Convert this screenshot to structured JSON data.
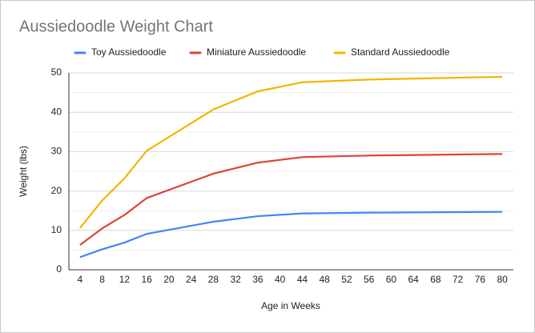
{
  "chart_data": {
    "type": "line",
    "title": "Aussiedoodle Weight Chart",
    "xlabel": "Age in Weeks",
    "ylabel": "Weight (lbs)",
    "x": [
      4,
      8,
      12,
      16,
      28,
      36,
      44,
      56,
      80
    ],
    "series": [
      {
        "name": "Toy Aussiedoodle",
        "color": "#4285f4",
        "values": [
          3.2,
          5.2,
          6.9,
          9.1,
          12.2,
          13.6,
          14.3,
          14.5,
          14.7
        ]
      },
      {
        "name": "Miniature Aussiedoodle",
        "color": "#db4437",
        "values": [
          6.3,
          10.5,
          13.9,
          18.2,
          24.4,
          27.2,
          28.6,
          29.0,
          29.4
        ]
      },
      {
        "name": "Standard Aussiedoodle",
        "color": "#f4b400",
        "values": [
          10.6,
          17.6,
          23.2,
          30.2,
          40.7,
          45.3,
          47.6,
          48.3,
          49.0
        ]
      }
    ],
    "xlim": [
      2,
      82
    ],
    "xticks": [
      4,
      8,
      12,
      16,
      20,
      24,
      28,
      32,
      36,
      40,
      44,
      48,
      52,
      56,
      60,
      64,
      68,
      72,
      76,
      80
    ],
    "ylim": [
      0,
      50
    ],
    "yticks": [
      0,
      10,
      20,
      30,
      40,
      50
    ],
    "grid": true,
    "legend": "top"
  }
}
